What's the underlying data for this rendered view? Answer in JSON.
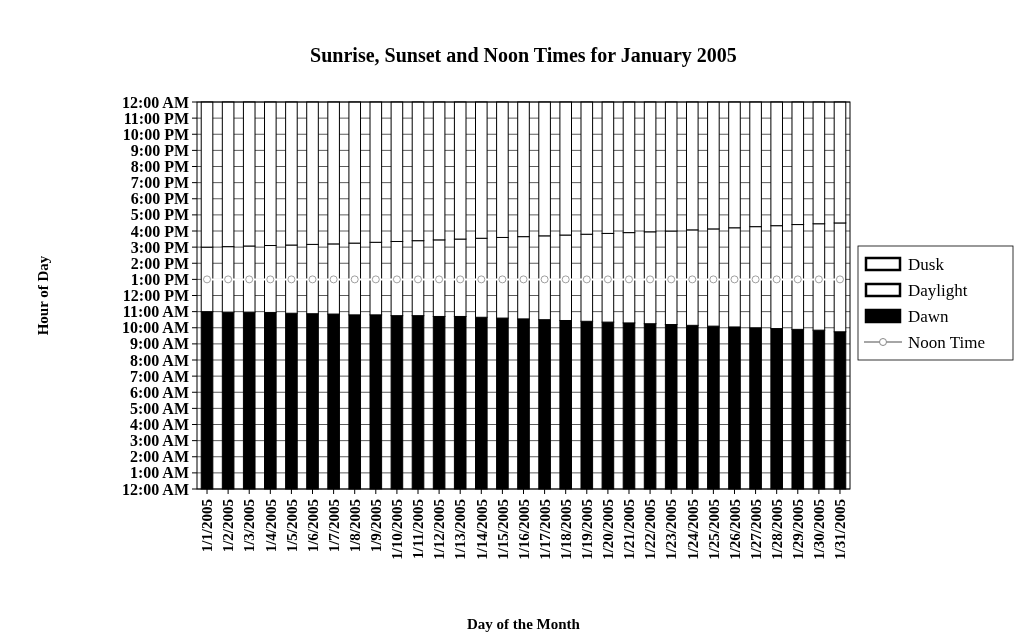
{
  "chart_data": {
    "type": "bar",
    "stacked": true,
    "title": "Sunrise, Sunset and Noon Times for January 2005",
    "xlabel": "Day of the Month",
    "ylabel": "Hour of Day",
    "categories": [
      "1/1/2005",
      "1/2/2005",
      "1/3/2005",
      "1/4/2005",
      "1/5/2005",
      "1/6/2005",
      "1/7/2005",
      "1/8/2005",
      "1/9/2005",
      "1/10/2005",
      "1/11/2005",
      "1/12/2005",
      "1/13/2005",
      "1/14/2005",
      "1/15/2005",
      "1/16/2005",
      "1/17/2005",
      "1/18/2005",
      "1/19/2005",
      "1/20/2005",
      "1/21/2005",
      "1/22/2005",
      "1/23/2005",
      "1/24/2005",
      "1/25/2005",
      "1/26/2005",
      "1/27/2005",
      "1/28/2005",
      "1/29/2005",
      "1/30/2005",
      "1/31/2005"
    ],
    "series": [
      {
        "name": "Dawn",
        "color": "#000000",
        "values": [
          11.0,
          10.97,
          10.97,
          10.95,
          10.9,
          10.87,
          10.85,
          10.8,
          10.8,
          10.75,
          10.75,
          10.7,
          10.7,
          10.65,
          10.6,
          10.55,
          10.5,
          10.45,
          10.4,
          10.35,
          10.3,
          10.25,
          10.2,
          10.15,
          10.1,
          10.05,
          10.0,
          9.95,
          9.9,
          9.85,
          9.75
        ]
      },
      {
        "name": "Daylight",
        "color": "#ffffff",
        "values": [
          4.0,
          4.06,
          4.1,
          4.15,
          4.23,
          4.3,
          4.35,
          4.45,
          4.5,
          4.6,
          4.65,
          4.75,
          4.8,
          4.9,
          5.0,
          5.1,
          5.2,
          5.3,
          5.4,
          5.5,
          5.6,
          5.7,
          5.8,
          5.92,
          6.03,
          6.15,
          6.27,
          6.38,
          6.5,
          6.6,
          6.75
        ]
      },
      {
        "name": "Dusk",
        "color": "#ffffff",
        "values": [
          9.0,
          8.97,
          8.93,
          8.9,
          8.87,
          8.83,
          8.8,
          8.75,
          8.7,
          8.65,
          8.6,
          8.55,
          8.5,
          8.45,
          8.4,
          8.35,
          8.3,
          8.25,
          8.2,
          8.15,
          8.1,
          8.05,
          8.0,
          7.93,
          7.87,
          7.8,
          7.73,
          7.67,
          7.6,
          7.55,
          7.5
        ]
      },
      {
        "name": "Noon Time",
        "type": "line",
        "color": "#ffffff",
        "marker": "circle",
        "values": [
          13,
          13,
          13,
          13,
          13,
          13,
          13,
          13,
          13,
          13,
          13,
          13,
          13,
          13,
          13,
          13,
          13,
          13,
          13,
          13,
          13,
          13,
          13,
          13,
          13,
          13,
          13,
          13,
          13,
          13,
          13
        ]
      }
    ],
    "ylim": [
      0,
      24
    ],
    "yticks": [
      {
        "value": 0,
        "label": "12:00 AM"
      },
      {
        "value": 1,
        "label": "1:00 AM"
      },
      {
        "value": 2,
        "label": "2:00 AM"
      },
      {
        "value": 3,
        "label": "3:00 AM"
      },
      {
        "value": 4,
        "label": "4:00 AM"
      },
      {
        "value": 5,
        "label": "5:00 AM"
      },
      {
        "value": 6,
        "label": "6:00 AM"
      },
      {
        "value": 7,
        "label": "7:00 AM"
      },
      {
        "value": 8,
        "label": "8:00 AM"
      },
      {
        "value": 9,
        "label": "9:00 AM"
      },
      {
        "value": 10,
        "label": "10:00 AM"
      },
      {
        "value": 11,
        "label": "11:00 AM"
      },
      {
        "value": 12,
        "label": "12:00 PM"
      },
      {
        "value": 13,
        "label": "1:00 PM"
      },
      {
        "value": 14,
        "label": "2:00 PM"
      },
      {
        "value": 15,
        "label": "3:00 PM"
      },
      {
        "value": 16,
        "label": "4:00 PM"
      },
      {
        "value": 17,
        "label": "5:00 PM"
      },
      {
        "value": 18,
        "label": "6:00 PM"
      },
      {
        "value": 19,
        "label": "7:00 PM"
      },
      {
        "value": 20,
        "label": "8:00 PM"
      },
      {
        "value": 21,
        "label": "9:00 PM"
      },
      {
        "value": 22,
        "label": "10:00 PM"
      },
      {
        "value": 23,
        "label": "11:00 PM"
      },
      {
        "value": 24,
        "label": "12:00 AM"
      }
    ],
    "grid": true,
    "legend": "right"
  }
}
